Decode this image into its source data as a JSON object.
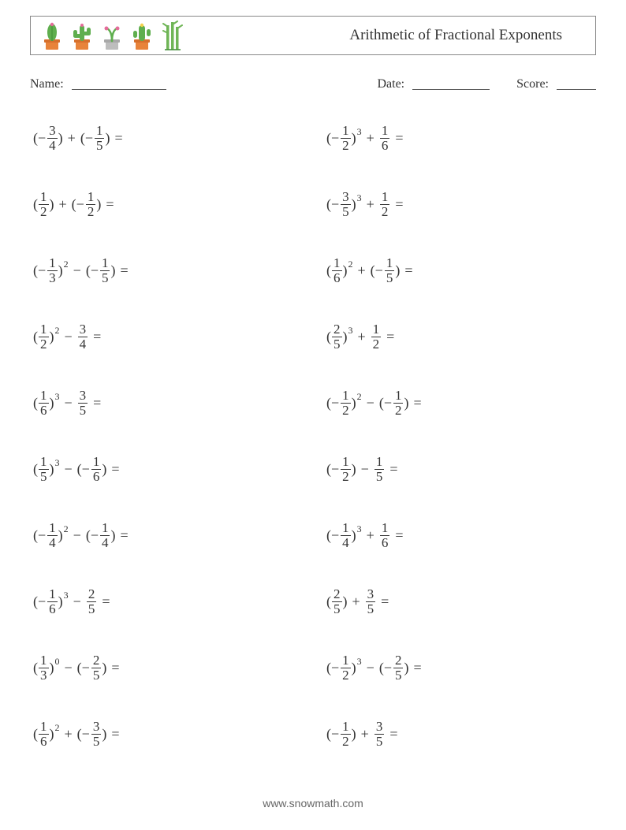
{
  "title": "Arithmetic of Fractional Exponents",
  "labels": {
    "name": "Name:",
    "date": "Date:",
    "score": "Score:"
  },
  "blanks": {
    "name_width": 120,
    "date_width": 98,
    "score_width": 50
  },
  "footer": "www.snowmath.com",
  "colors": {
    "text": "#333333",
    "border": "#888888",
    "footer": "#666666",
    "pot_orange": "#e8833a",
    "pot_grey": "#bdbdbd",
    "cactus_green": "#5fae4e",
    "cactus_dark": "#3f8c33",
    "flower_pink": "#e46c9a",
    "bamboo_green": "#6fb556"
  },
  "problems_left": [
    {
      "t1": {
        "neg": true,
        "n": "3",
        "d": "4",
        "exp": null
      },
      "op": "+",
      "t2": {
        "paren": true,
        "neg": true,
        "n": "1",
        "d": "5"
      }
    },
    {
      "t1": {
        "neg": false,
        "n": "1",
        "d": "2",
        "exp": null
      },
      "op": "+",
      "t2": {
        "paren": true,
        "neg": true,
        "n": "1",
        "d": "2"
      }
    },
    {
      "t1": {
        "neg": true,
        "n": "1",
        "d": "3",
        "exp": "2"
      },
      "op": "−",
      "t2": {
        "paren": true,
        "neg": true,
        "n": "1",
        "d": "5"
      }
    },
    {
      "t1": {
        "neg": false,
        "n": "1",
        "d": "2",
        "exp": "2"
      },
      "op": "−",
      "t2": {
        "paren": false,
        "neg": false,
        "n": "3",
        "d": "4"
      }
    },
    {
      "t1": {
        "neg": false,
        "n": "1",
        "d": "6",
        "exp": "3"
      },
      "op": "−",
      "t2": {
        "paren": false,
        "neg": false,
        "n": "3",
        "d": "5"
      }
    },
    {
      "t1": {
        "neg": false,
        "n": "1",
        "d": "5",
        "exp": "3"
      },
      "op": "−",
      "t2": {
        "paren": true,
        "neg": true,
        "n": "1",
        "d": "6"
      }
    },
    {
      "t1": {
        "neg": true,
        "n": "1",
        "d": "4",
        "exp": "2"
      },
      "op": "−",
      "t2": {
        "paren": true,
        "neg": true,
        "n": "1",
        "d": "4"
      }
    },
    {
      "t1": {
        "neg": true,
        "n": "1",
        "d": "6",
        "exp": "3"
      },
      "op": "−",
      "t2": {
        "paren": false,
        "neg": false,
        "n": "2",
        "d": "5"
      }
    },
    {
      "t1": {
        "neg": false,
        "n": "1",
        "d": "3",
        "exp": "0"
      },
      "op": "−",
      "t2": {
        "paren": true,
        "neg": true,
        "n": "2",
        "d": "5"
      }
    },
    {
      "t1": {
        "neg": false,
        "n": "1",
        "d": "6",
        "exp": "2"
      },
      "op": "+",
      "t2": {
        "paren": true,
        "neg": true,
        "n": "3",
        "d": "5"
      }
    }
  ],
  "problems_right": [
    {
      "t1": {
        "neg": true,
        "n": "1",
        "d": "2",
        "exp": "3"
      },
      "op": "+",
      "t2": {
        "paren": false,
        "neg": false,
        "n": "1",
        "d": "6"
      }
    },
    {
      "t1": {
        "neg": true,
        "n": "3",
        "d": "5",
        "exp": "3"
      },
      "op": "+",
      "t2": {
        "paren": false,
        "neg": false,
        "n": "1",
        "d": "2"
      }
    },
    {
      "t1": {
        "neg": false,
        "n": "1",
        "d": "6",
        "exp": "2"
      },
      "op": "+",
      "t2": {
        "paren": true,
        "neg": true,
        "n": "1",
        "d": "5"
      }
    },
    {
      "t1": {
        "neg": false,
        "n": "2",
        "d": "5",
        "exp": "3"
      },
      "op": "+",
      "t2": {
        "paren": false,
        "neg": false,
        "n": "1",
        "d": "2"
      }
    },
    {
      "t1": {
        "neg": true,
        "n": "1",
        "d": "2",
        "exp": "2"
      },
      "op": "−",
      "t2": {
        "paren": true,
        "neg": true,
        "n": "1",
        "d": "2"
      }
    },
    {
      "t1": {
        "neg": true,
        "n": "1",
        "d": "2",
        "exp": null
      },
      "op": "−",
      "t2": {
        "paren": false,
        "neg": false,
        "n": "1",
        "d": "5"
      }
    },
    {
      "t1": {
        "neg": true,
        "n": "1",
        "d": "4",
        "exp": "3"
      },
      "op": "+",
      "t2": {
        "paren": false,
        "neg": false,
        "n": "1",
        "d": "6"
      }
    },
    {
      "t1": {
        "neg": false,
        "n": "2",
        "d": "5",
        "exp": null
      },
      "op": "+",
      "t2": {
        "paren": false,
        "neg": false,
        "n": "3",
        "d": "5"
      }
    },
    {
      "t1": {
        "neg": true,
        "n": "1",
        "d": "2",
        "exp": "3"
      },
      "op": "−",
      "t2": {
        "paren": true,
        "neg": true,
        "n": "2",
        "d": "5"
      }
    },
    {
      "t1": {
        "neg": true,
        "n": "1",
        "d": "2",
        "exp": null
      },
      "op": "+",
      "t2": {
        "paren": false,
        "neg": false,
        "n": "3",
        "d": "5"
      }
    }
  ]
}
